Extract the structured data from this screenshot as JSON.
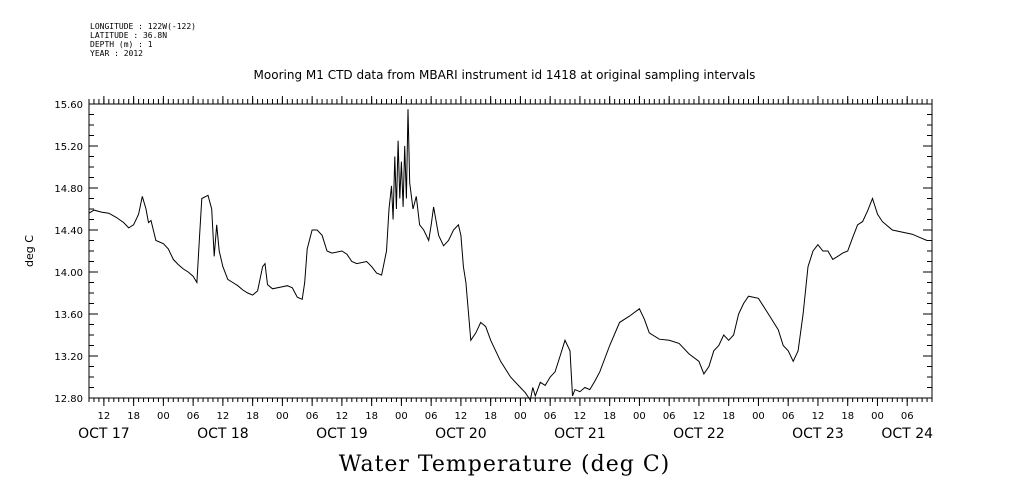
{
  "header": {
    "lines": [
      "LONGITUDE : 122W(-122)",
      "LATITUDE : 36.8N",
      "DEPTH (m) : 1",
      "YEAR : 2012"
    ],
    "title": "Mooring M1 CTD data from MBARI instrument id 1418 at original sampling intervals"
  },
  "chart_data": {
    "type": "line",
    "title": "Water Temperature (deg C)",
    "ylabel": "deg C",
    "ylim": [
      12.8,
      15.6
    ],
    "yticks": [
      12.8,
      13.2,
      13.6,
      14.0,
      14.4,
      14.8,
      15.2,
      15.6
    ],
    "ytick_labels": [
      "12.80",
      "13.20",
      "13.60",
      "14.00",
      "14.40",
      "14.80",
      "15.20",
      "15.60"
    ],
    "xlim": [
      "2012-10-17T09:00",
      "2012-10-24T11:00"
    ],
    "xticks": [
      {
        "t": "2012-10-17T12:00",
        "label": "12"
      },
      {
        "t": "2012-10-17T18:00",
        "label": "18"
      },
      {
        "t": "2012-10-18T00:00",
        "label": "00"
      },
      {
        "t": "2012-10-18T06:00",
        "label": "06"
      },
      {
        "t": "2012-10-18T12:00",
        "label": "12"
      },
      {
        "t": "2012-10-18T18:00",
        "label": "18"
      },
      {
        "t": "2012-10-19T00:00",
        "label": "00"
      },
      {
        "t": "2012-10-19T06:00",
        "label": "06"
      },
      {
        "t": "2012-10-19T12:00",
        "label": "12"
      },
      {
        "t": "2012-10-19T18:00",
        "label": "18"
      },
      {
        "t": "2012-10-20T00:00",
        "label": "00"
      },
      {
        "t": "2012-10-20T06:00",
        "label": "06"
      },
      {
        "t": "2012-10-20T12:00",
        "label": "12"
      },
      {
        "t": "2012-10-20T18:00",
        "label": "18"
      },
      {
        "t": "2012-10-21T00:00",
        "label": "00"
      },
      {
        "t": "2012-10-21T06:00",
        "label": "06"
      },
      {
        "t": "2012-10-21T12:00",
        "label": "12"
      },
      {
        "t": "2012-10-21T18:00",
        "label": "18"
      },
      {
        "t": "2012-10-22T00:00",
        "label": "00"
      },
      {
        "t": "2012-10-22T06:00",
        "label": "06"
      },
      {
        "t": "2012-10-22T12:00",
        "label": "12"
      },
      {
        "t": "2012-10-22T18:00",
        "label": "18"
      },
      {
        "t": "2012-10-23T00:00",
        "label": "00"
      },
      {
        "t": "2012-10-23T06:00",
        "label": "06"
      },
      {
        "t": "2012-10-23T12:00",
        "label": "12"
      },
      {
        "t": "2012-10-23T18:00",
        "label": "18"
      },
      {
        "t": "2012-10-24T00:00",
        "label": "00"
      },
      {
        "t": "2012-10-24T06:00",
        "label": "06"
      }
    ],
    "day_labels": [
      {
        "t": "2012-10-17T12:00",
        "label": "OCT 17"
      },
      {
        "t": "2012-10-18T12:00",
        "label": "OCT 18"
      },
      {
        "t": "2012-10-19T12:00",
        "label": "OCT 19"
      },
      {
        "t": "2012-10-20T12:00",
        "label": "OCT 20"
      },
      {
        "t": "2012-10-21T12:00",
        "label": "OCT 21"
      },
      {
        "t": "2012-10-22T12:00",
        "label": "OCT 22"
      },
      {
        "t": "2012-10-23T12:00",
        "label": "OCT 23"
      },
      {
        "t": "2012-10-24T06:00",
        "label": "OCT 24"
      }
    ],
    "grid": false,
    "series": [
      {
        "color": "#000000",
        "points": [
          [
            "2012-10-17T09:00",
            14.56
          ],
          [
            "2012-10-17T10:00",
            14.59
          ],
          [
            "2012-10-17T11:30",
            14.57
          ],
          [
            "2012-10-17T13:00",
            14.56
          ],
          [
            "2012-10-17T14:30",
            14.52
          ],
          [
            "2012-10-17T16:00",
            14.47
          ],
          [
            "2012-10-17T17:00",
            14.42
          ],
          [
            "2012-10-17T18:00",
            14.45
          ],
          [
            "2012-10-17T19:00",
            14.55
          ],
          [
            "2012-10-17T19:45",
            14.72
          ],
          [
            "2012-10-17T20:30",
            14.6
          ],
          [
            "2012-10-17T21:00",
            14.47
          ],
          [
            "2012-10-17T21:30",
            14.49
          ],
          [
            "2012-10-17T22:30",
            14.3
          ],
          [
            "2012-10-18T00:00",
            14.27
          ],
          [
            "2012-10-18T01:00",
            14.22
          ],
          [
            "2012-10-18T02:00",
            14.12
          ],
          [
            "2012-10-18T03:00",
            14.07
          ],
          [
            "2012-10-18T04:00",
            14.03
          ],
          [
            "2012-10-18T05:00",
            14.0
          ],
          [
            "2012-10-18T06:00",
            13.96
          ],
          [
            "2012-10-18T06:45",
            13.9
          ],
          [
            "2012-10-18T07:15",
            14.3
          ],
          [
            "2012-10-18T07:45",
            14.7
          ],
          [
            "2012-10-18T09:00",
            14.73
          ],
          [
            "2012-10-18T09:45",
            14.6
          ],
          [
            "2012-10-18T10:15",
            14.15
          ],
          [
            "2012-10-18T10:45",
            14.45
          ],
          [
            "2012-10-18T11:15",
            14.2
          ],
          [
            "2012-10-18T12:00",
            14.05
          ],
          [
            "2012-10-18T13:00",
            13.93
          ],
          [
            "2012-10-18T14:00",
            13.9
          ],
          [
            "2012-10-18T15:00",
            13.87
          ],
          [
            "2012-10-18T16:00",
            13.83
          ],
          [
            "2012-10-18T17:00",
            13.8
          ],
          [
            "2012-10-18T18:00",
            13.78
          ],
          [
            "2012-10-18T19:00",
            13.82
          ],
          [
            "2012-10-18T20:00",
            14.05
          ],
          [
            "2012-10-18T20:30",
            14.08
          ],
          [
            "2012-10-18T21:00",
            13.88
          ],
          [
            "2012-10-18T22:00",
            13.84
          ],
          [
            "2012-10-19T00:00",
            13.86
          ],
          [
            "2012-10-19T01:00",
            13.87
          ],
          [
            "2012-10-19T02:00",
            13.85
          ],
          [
            "2012-10-19T03:00",
            13.76
          ],
          [
            "2012-10-19T04:00",
            13.74
          ],
          [
            "2012-10-19T04:30",
            13.9
          ],
          [
            "2012-10-19T05:00",
            14.22
          ],
          [
            "2012-10-19T06:00",
            14.4
          ],
          [
            "2012-10-19T07:00",
            14.4
          ],
          [
            "2012-10-19T08:00",
            14.35
          ],
          [
            "2012-10-19T09:00",
            14.2
          ],
          [
            "2012-10-19T10:00",
            14.18
          ],
          [
            "2012-10-19T12:00",
            14.2
          ],
          [
            "2012-10-19T13:00",
            14.17
          ],
          [
            "2012-10-19T14:00",
            14.1
          ],
          [
            "2012-10-19T15:00",
            14.08
          ],
          [
            "2012-10-19T17:00",
            14.1
          ],
          [
            "2012-10-19T18:00",
            14.05
          ],
          [
            "2012-10-19T19:00",
            13.99
          ],
          [
            "2012-10-19T20:00",
            13.97
          ],
          [
            "2012-10-19T21:00",
            14.2
          ],
          [
            "2012-10-19T21:30",
            14.6
          ],
          [
            "2012-10-19T22:00",
            14.82
          ],
          [
            "2012-10-19T22:20",
            14.5
          ],
          [
            "2012-10-19T22:40",
            15.1
          ],
          [
            "2012-10-19T23:00",
            14.6
          ],
          [
            "2012-10-19T23:20",
            15.25
          ],
          [
            "2012-10-19T23:40",
            14.7
          ],
          [
            "2012-10-20T00:00",
            15.05
          ],
          [
            "2012-10-20T00:20",
            14.62
          ],
          [
            "2012-10-20T00:40",
            15.2
          ],
          [
            "2012-10-20T01:00",
            14.7
          ],
          [
            "2012-10-20T01:20",
            15.55
          ],
          [
            "2012-10-20T01:40",
            14.85
          ],
          [
            "2012-10-20T02:20",
            14.6
          ],
          [
            "2012-10-20T03:00",
            14.72
          ],
          [
            "2012-10-20T03:40",
            14.45
          ],
          [
            "2012-10-20T04:30",
            14.4
          ],
          [
            "2012-10-20T05:30",
            14.3
          ],
          [
            "2012-10-20T06:00",
            14.45
          ],
          [
            "2012-10-20T06:30",
            14.62
          ],
          [
            "2012-10-20T07:30",
            14.35
          ],
          [
            "2012-10-20T08:30",
            14.25
          ],
          [
            "2012-10-20T09:30",
            14.3
          ],
          [
            "2012-10-20T10:30",
            14.4
          ],
          [
            "2012-10-20T11:30",
            14.45
          ],
          [
            "2012-10-20T12:00",
            14.35
          ],
          [
            "2012-10-20T12:30",
            14.05
          ],
          [
            "2012-10-20T13:00",
            13.9
          ],
          [
            "2012-10-20T14:00",
            13.35
          ],
          [
            "2012-10-20T15:00",
            13.42
          ],
          [
            "2012-10-20T16:00",
            13.52
          ],
          [
            "2012-10-20T17:00",
            13.48
          ],
          [
            "2012-10-20T18:00",
            13.35
          ],
          [
            "2012-10-20T20:00",
            13.15
          ],
          [
            "2012-10-20T22:00",
            13.0
          ],
          [
            "2012-10-21T00:00",
            12.9
          ],
          [
            "2012-10-21T01:00",
            12.85
          ],
          [
            "2012-10-21T02:00",
            12.78
          ],
          [
            "2012-10-21T02:30",
            12.9
          ],
          [
            "2012-10-21T03:00",
            12.82
          ],
          [
            "2012-10-21T04:00",
            12.95
          ],
          [
            "2012-10-21T05:00",
            12.92
          ],
          [
            "2012-10-21T06:00",
            13.0
          ],
          [
            "2012-10-21T07:00",
            13.05
          ],
          [
            "2012-10-21T08:00",
            13.2
          ],
          [
            "2012-10-21T09:00",
            13.35
          ],
          [
            "2012-10-21T10:00",
            13.25
          ],
          [
            "2012-10-21T10:30",
            12.82
          ],
          [
            "2012-10-21T11:00",
            12.88
          ],
          [
            "2012-10-21T12:00",
            12.86
          ],
          [
            "2012-10-21T13:00",
            12.9
          ],
          [
            "2012-10-21T14:00",
            12.88
          ],
          [
            "2012-10-21T15:00",
            12.96
          ],
          [
            "2012-10-21T16:00",
            13.05
          ],
          [
            "2012-10-21T18:00",
            13.3
          ],
          [
            "2012-10-21T20:00",
            13.52
          ],
          [
            "2012-10-21T22:00",
            13.58
          ],
          [
            "2012-10-22T00:00",
            13.65
          ],
          [
            "2012-10-22T01:00",
            13.55
          ],
          [
            "2012-10-22T02:00",
            13.42
          ],
          [
            "2012-10-22T04:00",
            13.36
          ],
          [
            "2012-10-22T06:00",
            13.35
          ],
          [
            "2012-10-22T08:00",
            13.32
          ],
          [
            "2012-10-22T10:00",
            13.22
          ],
          [
            "2012-10-22T12:00",
            13.15
          ],
          [
            "2012-10-22T13:00",
            13.03
          ],
          [
            "2012-10-22T14:00",
            13.1
          ],
          [
            "2012-10-22T15:00",
            13.25
          ],
          [
            "2012-10-22T16:00",
            13.3
          ],
          [
            "2012-10-22T17:00",
            13.4
          ],
          [
            "2012-10-22T18:00",
            13.35
          ],
          [
            "2012-10-22T19:00",
            13.4
          ],
          [
            "2012-10-22T20:00",
            13.6
          ],
          [
            "2012-10-22T21:00",
            13.7
          ],
          [
            "2012-10-22T22:00",
            13.77
          ],
          [
            "2012-10-23T00:00",
            13.75
          ],
          [
            "2012-10-23T02:00",
            13.6
          ],
          [
            "2012-10-23T04:00",
            13.45
          ],
          [
            "2012-10-23T05:00",
            13.3
          ],
          [
            "2012-10-23T06:00",
            13.25
          ],
          [
            "2012-10-23T07:00",
            13.15
          ],
          [
            "2012-10-23T08:00",
            13.25
          ],
          [
            "2012-10-23T09:00",
            13.6
          ],
          [
            "2012-10-23T10:00",
            14.05
          ],
          [
            "2012-10-23T11:00",
            14.2
          ],
          [
            "2012-10-23T12:00",
            14.26
          ],
          [
            "2012-10-23T13:00",
            14.2
          ],
          [
            "2012-10-23T14:00",
            14.2
          ],
          [
            "2012-10-23T15:00",
            14.12
          ],
          [
            "2012-10-23T16:00",
            14.15
          ],
          [
            "2012-10-23T17:00",
            14.18
          ],
          [
            "2012-10-23T18:00",
            14.2
          ],
          [
            "2012-10-23T19:00",
            14.33
          ],
          [
            "2012-10-23T20:00",
            14.45
          ],
          [
            "2012-10-23T21:00",
            14.48
          ],
          [
            "2012-10-23T22:00",
            14.58
          ],
          [
            "2012-10-23T23:00",
            14.7
          ],
          [
            "2012-10-24T00:00",
            14.55
          ],
          [
            "2012-10-24T01:00",
            14.48
          ],
          [
            "2012-10-24T03:00",
            14.4
          ],
          [
            "2012-10-24T05:00",
            14.38
          ],
          [
            "2012-10-24T07:00",
            14.36
          ],
          [
            "2012-10-24T09:00",
            14.32
          ],
          [
            "2012-10-24T10:00",
            14.3
          ]
        ]
      }
    ]
  }
}
